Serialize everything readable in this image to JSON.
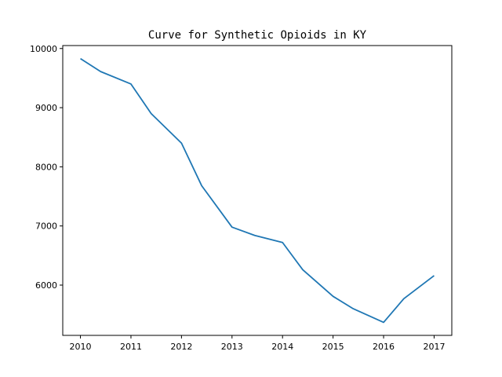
{
  "chart_data": {
    "type": "line",
    "title": "Curve for Synthetic Opioids in KY",
    "xlabel": "",
    "ylabel": "",
    "xlim": [
      2009.65,
      2017.35
    ],
    "ylim": [
      5150,
      10050
    ],
    "x_ticks": [
      2010,
      2011,
      2012,
      2013,
      2014,
      2015,
      2016,
      2017
    ],
    "y_ticks": [
      6000,
      7000,
      8000,
      9000,
      10000
    ],
    "grid": false,
    "series": [
      {
        "color": "#1f77b4",
        "x": [
          2010,
          2010.4,
          2011,
          2011.4,
          2012,
          2012.4,
          2013,
          2013.45,
          2014,
          2014.4,
          2015,
          2015.4,
          2016,
          2016.4,
          2017
        ],
        "y": [
          9830,
          9610,
          9400,
          8900,
          8400,
          7680,
          6980,
          6840,
          6720,
          6260,
          5810,
          5600,
          5370,
          5770,
          6160
        ]
      }
    ]
  }
}
